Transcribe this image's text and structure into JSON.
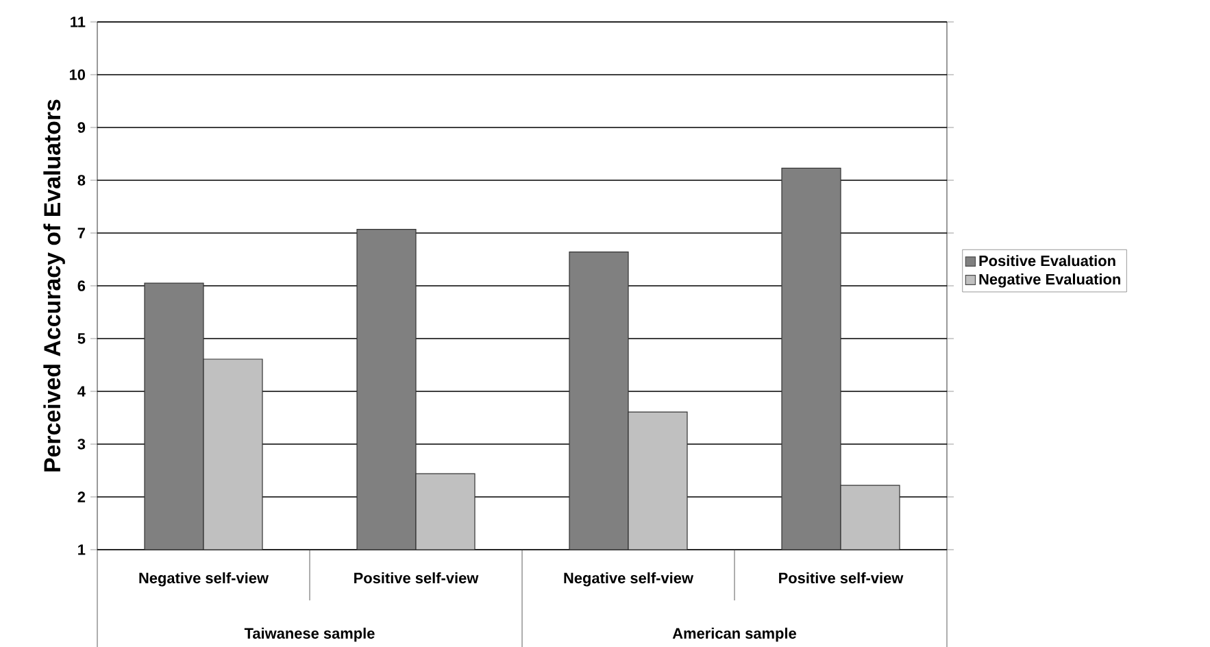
{
  "chart_data": {
    "type": "bar",
    "ylabel": "Perceived Accuracy of Evaluators",
    "categories": [
      "Negative self-view",
      "Positive self-view",
      "Negative self-view",
      "Positive self-view"
    ],
    "series": [
      {
        "name": "Positive Evaluation",
        "color": "#808080",
        "values": [
          6.05,
          7.07,
          6.64,
          8.23
        ]
      },
      {
        "name": "Negative Evaluation",
        "color": "#c0c0c0",
        "values": [
          4.61,
          2.44,
          3.61,
          2.22
        ]
      }
    ],
    "annotations": [
      "Taiwanese sample",
      "American sample"
    ],
    "ylim": [
      1,
      11
    ],
    "yticks": [
      1,
      2,
      3,
      4,
      5,
      6,
      7,
      8,
      9,
      10,
      11
    ],
    "grid": "y",
    "legend": "right"
  }
}
